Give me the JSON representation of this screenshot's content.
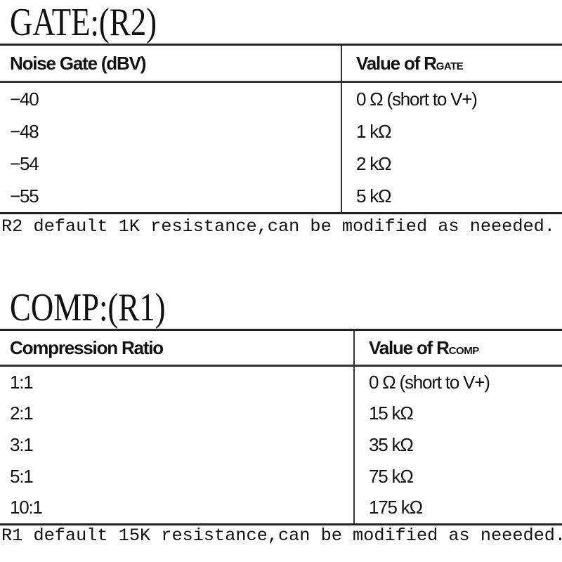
{
  "gate": {
    "title": "GATE:(R2)",
    "headers": {
      "col1": "Noise Gate (dBV)",
      "col2_main": "Value of R",
      "col2_sub": "GATE"
    },
    "rows": [
      {
        "gate": "−40",
        "value": "0 Ω (short to V+)"
      },
      {
        "gate": "−48",
        "value": "1 kΩ"
      },
      {
        "gate": "−54",
        "value": "2 kΩ"
      },
      {
        "gate": "−55",
        "value": "5 kΩ"
      }
    ],
    "caption": "R2 default 1K resistance,can be modified as neeeded."
  },
  "comp": {
    "title": "COMP:(R1)",
    "headers": {
      "col1": "Compression Ratio",
      "col2_main": "Value of R",
      "col2_sub": "COMP"
    },
    "rows": [
      {
        "ratio": "1:1",
        "value": "0 Ω (short to V+)"
      },
      {
        "ratio": "2:1",
        "value": "15 kΩ"
      },
      {
        "ratio": "3:1",
        "value": "35 kΩ"
      },
      {
        "ratio": "5:1",
        "value": "75 kΩ"
      },
      {
        "ratio": "10:1",
        "value": "175 kΩ"
      }
    ],
    "caption": "R1 default 15K resistance,can be modified as neeeded."
  }
}
